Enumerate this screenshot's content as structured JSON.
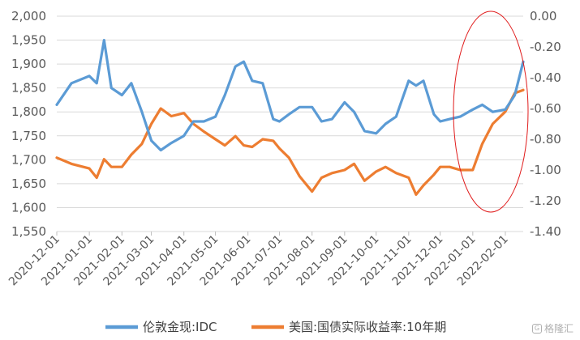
{
  "chart_data": {
    "type": "line",
    "title": "",
    "x": [
      "2020-12-01",
      "2020-12-15",
      "2021-01-01",
      "2021-01-08",
      "2021-01-15",
      "2021-01-22",
      "2021-02-01",
      "2021-02-10",
      "2021-02-20",
      "2021-03-01",
      "2021-03-10",
      "2021-03-20",
      "2021-04-01",
      "2021-04-10",
      "2021-04-20",
      "2021-05-01",
      "2021-05-10",
      "2021-05-20",
      "2021-05-28",
      "2021-06-05",
      "2021-06-15",
      "2021-06-25",
      "2021-07-01",
      "2021-07-10",
      "2021-07-20",
      "2021-08-01",
      "2021-08-10",
      "2021-08-20",
      "2021-09-01",
      "2021-09-10",
      "2021-09-20",
      "2021-10-01",
      "2021-10-10",
      "2021-10-20",
      "2021-11-01",
      "2021-11-08",
      "2021-11-15",
      "2021-11-25",
      "2021-12-01",
      "2021-12-10",
      "2021-12-20",
      "2022-01-01",
      "2022-01-10",
      "2022-01-20",
      "2022-02-01",
      "2022-02-10",
      "2022-02-18"
    ],
    "x_ticks": [
      "2020-12-01",
      "2021-01-01",
      "2021-02-01",
      "2021-03-01",
      "2021-04-01",
      "2021-05-01",
      "2021-06-01",
      "2021-07-01",
      "2021-08-01",
      "2021-09-01",
      "2021-10-01",
      "2021-11-01",
      "2021-12-01",
      "2022-01-01",
      "2022-02-01"
    ],
    "y_left": {
      "min": 1550,
      "max": 2000,
      "step": 50,
      "tick_labels": [
        "1,550",
        "1,600",
        "1,650",
        "1,700",
        "1,750",
        "1,800",
        "1,850",
        "1,900",
        "1,950",
        "2,000"
      ]
    },
    "y_right": {
      "min": -1.4,
      "max": 0.0,
      "step": 0.2,
      "tick_labels": [
        "-1.40",
        "-1.20",
        "-1.00",
        "-0.80",
        "-0.60",
        "-0.40",
        "-0.20",
        "0.00"
      ]
    },
    "series": [
      {
        "name": "伦敦金现:IDC",
        "axis": "left",
        "color": "#5b9bd5",
        "values": [
          1815,
          1860,
          1875,
          1860,
          1950,
          1850,
          1835,
          1860,
          1800,
          1740,
          1720,
          1735,
          1750,
          1780,
          1780,
          1790,
          1835,
          1895,
          1905,
          1865,
          1860,
          1785,
          1780,
          1795,
          1810,
          1810,
          1780,
          1785,
          1820,
          1800,
          1760,
          1755,
          1775,
          1790,
          1865,
          1855,
          1865,
          1795,
          1780,
          1785,
          1790,
          1805,
          1815,
          1800,
          1805,
          1835,
          1905
        ]
      },
      {
        "name": "美国:国债实际收益率:10年期",
        "axis": "right",
        "color": "#ed7d31",
        "values": [
          -0.92,
          -0.96,
          -0.99,
          -1.05,
          -0.93,
          -0.98,
          -0.98,
          -0.9,
          -0.83,
          -0.7,
          -0.6,
          -0.65,
          -0.63,
          -0.7,
          -0.75,
          -0.8,
          -0.84,
          -0.78,
          -0.84,
          -0.85,
          -0.8,
          -0.81,
          -0.86,
          -0.92,
          -1.04,
          -1.14,
          -1.05,
          -1.02,
          -1.0,
          -0.96,
          -1.07,
          -1.01,
          -0.98,
          -1.02,
          -1.05,
          -1.16,
          -1.1,
          -1.03,
          -0.98,
          -0.98,
          -1.0,
          -1.0,
          -0.83,
          -0.7,
          -0.62,
          -0.5,
          -0.48
        ]
      }
    ],
    "legend_position": "bottom",
    "annotation": "red ellipse highlighting 2022-01 to 2022-02"
  },
  "legend": {
    "gold": "伦敦金现:IDC",
    "yield": "美国:国债实际收益率:10年期"
  },
  "watermark": {
    "icon": "gelonghui-logo-icon",
    "text": "格隆汇"
  }
}
